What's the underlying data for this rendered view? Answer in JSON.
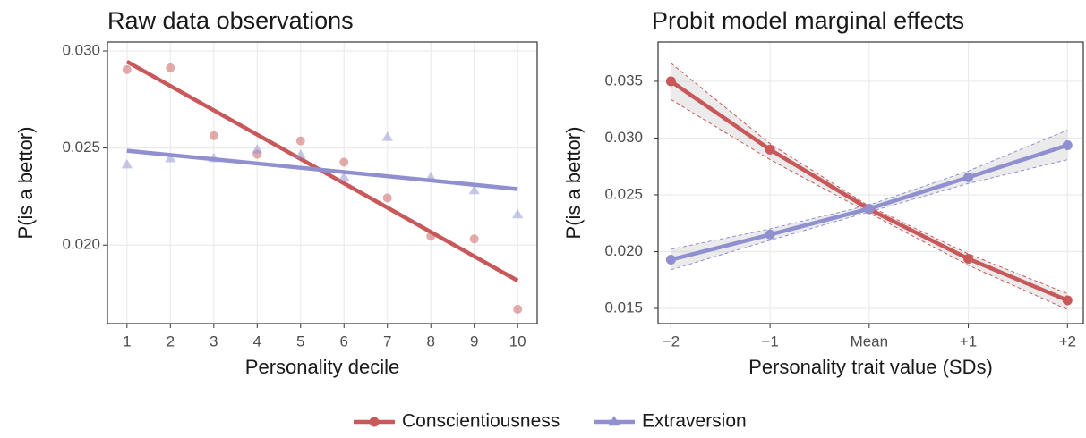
{
  "chart_data": [
    {
      "type": "scatter",
      "title": "Raw data observations",
      "x_label": "Personality decile",
      "y_label": "P(is a bettor)",
      "xlim": [
        0.55,
        10.45
      ],
      "xticks": [
        1,
        2,
        3,
        4,
        5,
        6,
        7,
        8,
        9,
        10
      ],
      "ylim": [
        0.01596,
        0.03046
      ],
      "yticks": [
        {
          "value": 0.02,
          "label": "0.020"
        },
        0.025,
        {
          "value": 0.03,
          "label": "0.030"
        }
      ],
      "grid": true,
      "point_opacity": 0.5,
      "series": [
        {
          "color": "#c9585a",
          "marker": "circle",
          "x": [
            1,
            2,
            3,
            4,
            5,
            6,
            7,
            8,
            9,
            10
          ],
          "values": [
            0.02904,
            0.02913,
            0.02564,
            0.02468,
            0.02537,
            0.02427,
            0.02243,
            0.02046,
            0.02032,
            0.0167
          ],
          "fit": {
            "x": [
              1,
              10
            ],
            "values": [
              0.02945,
              0.01817
            ]
          }
        },
        {
          "color": "#9090d0",
          "marker": "triangle",
          "x": [
            1,
            2,
            3,
            4,
            5,
            6,
            7,
            8,
            9,
            10
          ],
          "values": [
            0.02413,
            0.02445,
            0.02445,
            0.02491,
            0.02463,
            0.02349,
            0.02555,
            0.02349,
            0.0228,
            0.02156
          ],
          "fit": {
            "x": [
              1,
              10
            ],
            "values": [
              0.02486,
              0.02289
            ]
          }
        }
      ]
    },
    {
      "type": "line",
      "title": "Probit model marginal effects",
      "x_label": "Personality trait value (SDs)",
      "y_label": "P(is a bettor)",
      "xlim": [
        -2.13,
        2.16
      ],
      "xticks": [
        {
          "value": -2,
          "label": "−2"
        },
        {
          "value": -1,
          "label": "−1"
        },
        {
          "value": 0,
          "label": "Mean"
        },
        {
          "value": 1,
          "label": "+1"
        },
        {
          "value": 2,
          "label": "+2"
        }
      ],
      "ylim": [
        0.01366,
        0.03846
      ],
      "yticks": [
        0.015,
        {
          "value": 0.02,
          "label": "0.020"
        },
        0.025,
        {
          "value": 0.03,
          "label": "0.030"
        },
        0.035
      ],
      "grid": true,
      "series": [
        {
          "color": "#c9585a",
          "x": [
            -2,
            -1,
            0,
            1,
            2
          ],
          "values": [
            0.035,
            0.02898,
            0.02374,
            0.01937,
            0.01571
          ],
          "lower": [
            0.0334,
            0.0281,
            0.0234,
            0.0188,
            0.0149
          ],
          "upper": [
            0.0366,
            0.0295,
            0.024,
            0.0198,
            0.0163
          ]
        },
        {
          "color": "#9090d0",
          "x": [
            -2,
            -1,
            0,
            1,
            2
          ],
          "values": [
            0.01929,
            0.0215,
            0.02378,
            0.02654,
            0.02937
          ],
          "lower": [
            0.0184,
            0.021,
            0.0235,
            0.026,
            0.0281
          ],
          "upper": [
            0.0202,
            0.022,
            0.0241,
            0.0271,
            0.0307
          ]
        }
      ]
    }
  ],
  "legend": {
    "entries": [
      {
        "name": "Conscientiousness",
        "color": "#c9585a",
        "marker": "circle"
      },
      {
        "name": "Extraversion",
        "color": "#9090d0",
        "marker": "triangle"
      }
    ]
  }
}
